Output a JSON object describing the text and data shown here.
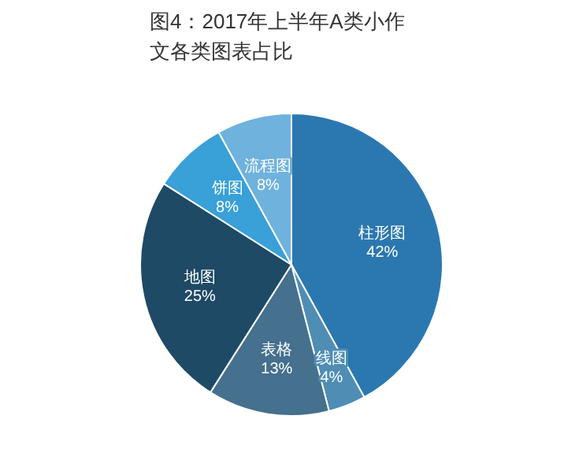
{
  "chart_data": {
    "type": "pie",
    "title": "图4：2017年上半年A类小作文各类图表占比",
    "categories": [
      "柱形图",
      "线图",
      "表格",
      "地图",
      "饼图",
      "流程图"
    ],
    "values": [
      42,
      4,
      13,
      25,
      8,
      8
    ],
    "colors": [
      "#2b78b0",
      "#4f8db5",
      "#45708e",
      "#1e4a66",
      "#39a0d8",
      "#6fb2dd"
    ],
    "data_labels": true,
    "value_labels": [
      "42%",
      "4%",
      "13%",
      "25%",
      "8%",
      "8%"
    ],
    "legend": false
  }
}
